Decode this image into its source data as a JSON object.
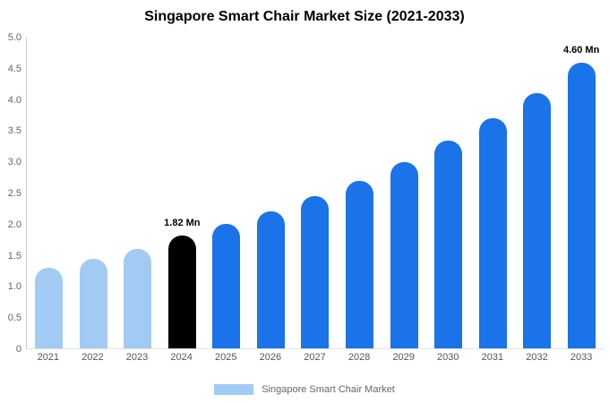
{
  "chart_data": {
    "type": "bar",
    "title": "Singapore Smart Chair Market Size (2021-2033)",
    "categories": [
      "2021",
      "2022",
      "2023",
      "2024",
      "2025",
      "2026",
      "2027",
      "2028",
      "2029",
      "2030",
      "2031",
      "2032",
      "2033"
    ],
    "values": [
      1.3,
      1.44,
      1.6,
      1.82,
      2.0,
      2.2,
      2.45,
      2.7,
      3.0,
      3.34,
      3.7,
      4.1,
      4.6
    ],
    "unit": "Mn",
    "ylim": [
      0,
      5
    ],
    "yticks": [
      "5.0",
      "4.5",
      "4.0",
      "3.5",
      "3.0",
      "2.5",
      "2.0",
      "1.5",
      "1.0",
      "0.5",
      "0"
    ],
    "bar_colors": [
      "#A2CBF4",
      "#A2CBF4",
      "#A2CBF4",
      "#000000",
      "#1A73E8",
      "#1A73E8",
      "#1A73E8",
      "#1A73E8",
      "#1A73E8",
      "#1A73E8",
      "#1A73E8",
      "#1A73E8",
      "#1A73E8"
    ],
    "annotations": [
      {
        "category": "2024",
        "text": "1.82 Mn"
      },
      {
        "category": "2033",
        "text": "4.60 Mn"
      }
    ],
    "legend": "Singapore Smart Chair Market",
    "legend_swatch_color": "#A2CBF4",
    "grid": false,
    "legend_position": "bottom"
  }
}
